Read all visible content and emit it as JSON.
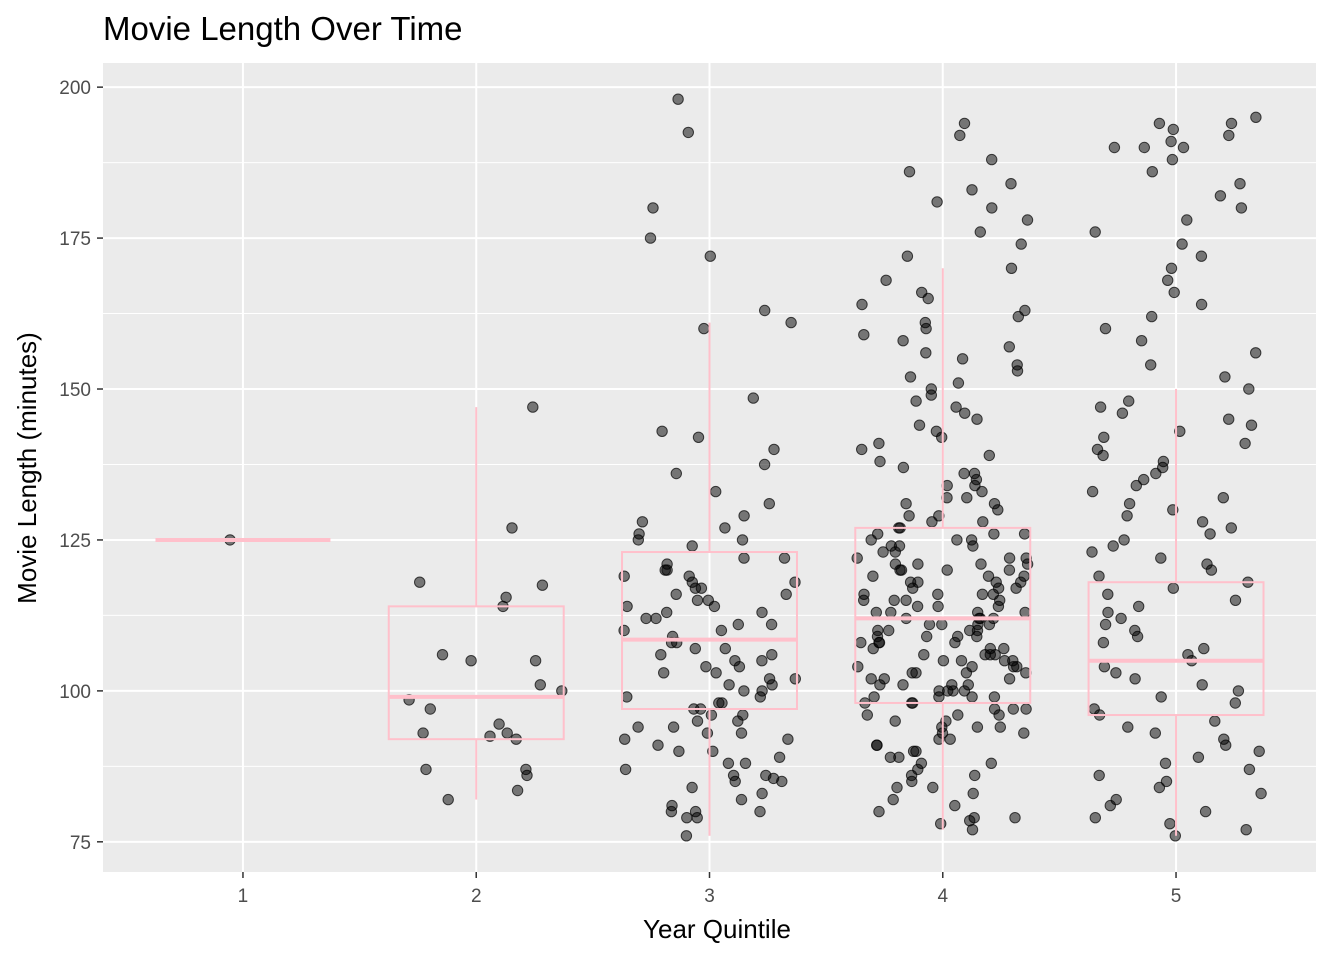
{
  "chart_data": {
    "type": "boxplot-with-jitter",
    "title": "Movie Length Over Time",
    "xlabel": "Year Quintile",
    "ylabel": "Movie Length (minutes)",
    "categories": [
      "1",
      "2",
      "3",
      "4",
      "5"
    ],
    "ylim": [
      70,
      204
    ],
    "y_ticks": [
      75,
      100,
      125,
      150,
      175,
      200
    ],
    "y_tick_labels": [
      "75",
      "100",
      "125",
      "150",
      "175",
      "200"
    ],
    "grid": true,
    "colors": {
      "panel": "#ebebeb",
      "grid": "#ffffff",
      "box": "#ffc0cb",
      "points": "#000000"
    },
    "boxes": [
      {
        "category": "1",
        "min": 125,
        "q1": 125,
        "median": 125,
        "q3": 125,
        "max": 125
      },
      {
        "category": "2",
        "min": 82,
        "q1": 92,
        "median": 99,
        "q3": 114,
        "max": 147
      },
      {
        "category": "3",
        "min": 76,
        "q1": 97,
        "median": 108.5,
        "q3": 123,
        "max": 161
      },
      {
        "category": "4",
        "min": 77,
        "q1": 98,
        "median": 112,
        "q3": 127,
        "max": 170
      },
      {
        "category": "5",
        "min": 76,
        "q1": 96,
        "median": 105,
        "q3": 118,
        "max": 150
      }
    ],
    "points": {
      "1": [
        125
      ],
      "2": [
        114,
        106,
        94.5,
        100,
        93,
        115.5,
        118,
        117.5,
        127,
        147,
        83.5,
        82,
        86,
        93,
        92.5,
        97,
        87,
        87,
        101,
        105,
        98.5,
        105,
        92
      ],
      "3": [
        76,
        80,
        79,
        85,
        85.5,
        80,
        79,
        163,
        180,
        175,
        198,
        192.5,
        172,
        161,
        160,
        148.5,
        143,
        142,
        140,
        137.5,
        136,
        133,
        131,
        129,
        128,
        127,
        126,
        125,
        124,
        122,
        120,
        119,
        118,
        117,
        116,
        115,
        114,
        113,
        112,
        111,
        110,
        109,
        108,
        107,
        106,
        105,
        104,
        103,
        102,
        101,
        100,
        99,
        98,
        97,
        96,
        95,
        94,
        93,
        92,
        91,
        90,
        89,
        88,
        87,
        86,
        85,
        84,
        83,
        82,
        81,
        80,
        118,
        115,
        112,
        110,
        104,
        101,
        98,
        96,
        94,
        122,
        125,
        120,
        117,
        113,
        108,
        106,
        103,
        100,
        97,
        95,
        92,
        90,
        88,
        86,
        99,
        102,
        107,
        111,
        116,
        119,
        121,
        114,
        105,
        93
      ],
      "4": [
        77,
        78,
        78.5,
        79,
        79,
        80,
        81,
        82,
        83,
        84,
        85,
        86,
        87,
        88,
        89,
        90,
        91,
        92,
        93,
        94,
        95,
        96,
        97,
        98,
        99,
        100,
        101,
        102,
        103,
        104,
        105,
        106,
        107,
        108,
        109,
        110,
        111,
        112,
        113,
        114,
        115,
        116,
        117,
        118,
        119,
        120,
        121,
        122,
        123,
        124,
        125,
        126,
        127,
        128,
        129,
        130,
        131,
        132,
        133,
        134,
        135,
        136,
        137,
        138,
        139,
        140,
        141,
        142,
        143,
        144,
        145,
        146,
        147,
        148,
        149,
        150,
        151,
        152,
        153,
        154,
        155,
        156,
        157,
        158,
        159,
        160,
        161,
        162,
        163,
        164,
        165,
        166,
        168,
        170,
        172,
        174,
        176,
        178,
        180,
        181,
        183,
        184,
        186,
        188,
        192,
        194,
        100,
        102,
        104,
        106,
        108,
        110,
        112,
        114,
        116,
        118,
        120,
        122,
        124,
        126,
        95,
        97,
        99,
        101,
        103,
        105,
        107,
        109,
        111,
        113,
        115,
        117,
        119,
        121,
        123,
        125,
        127,
        90,
        92,
        94,
        96,
        98,
        100,
        105,
        110,
        115,
        120,
        88,
        93,
        103,
        108,
        113,
        118,
        128,
        132,
        136,
        86,
        91,
        96,
        101,
        106,
        111,
        116,
        121,
        126,
        131,
        84,
        89,
        99,
        104,
        109,
        114,
        119,
        124,
        129,
        134,
        100,
        105,
        110,
        112,
        115,
        120,
        98,
        102,
        107,
        111,
        117,
        122,
        99,
        103,
        106,
        109,
        113,
        116,
        121,
        94,
        97,
        101,
        104,
        108,
        112,
        118,
        125
      ],
      "5": [
        76,
        77,
        78,
        79,
        80,
        81,
        82,
        83,
        84,
        85,
        86,
        87,
        88,
        89,
        90,
        91,
        92,
        93,
        94,
        95,
        96,
        97,
        98,
        99,
        100,
        101,
        102,
        103,
        104,
        105,
        106,
        107,
        108,
        109,
        110,
        111,
        112,
        113,
        114,
        115,
        116,
        117,
        118,
        119,
        120,
        121,
        122,
        123,
        124,
        125,
        126,
        127,
        128,
        129,
        130,
        131,
        132,
        133,
        134,
        135,
        136,
        137,
        138,
        139,
        140,
        141,
        142,
        143,
        144,
        145,
        146,
        147,
        148,
        150,
        152,
        154,
        156,
        158,
        160,
        162,
        164,
        166,
        168,
        170,
        172,
        174,
        176,
        178,
        180,
        182,
        184,
        186,
        188,
        190,
        190,
        190,
        191,
        192,
        193,
        194,
        194,
        195
      ]
    }
  }
}
